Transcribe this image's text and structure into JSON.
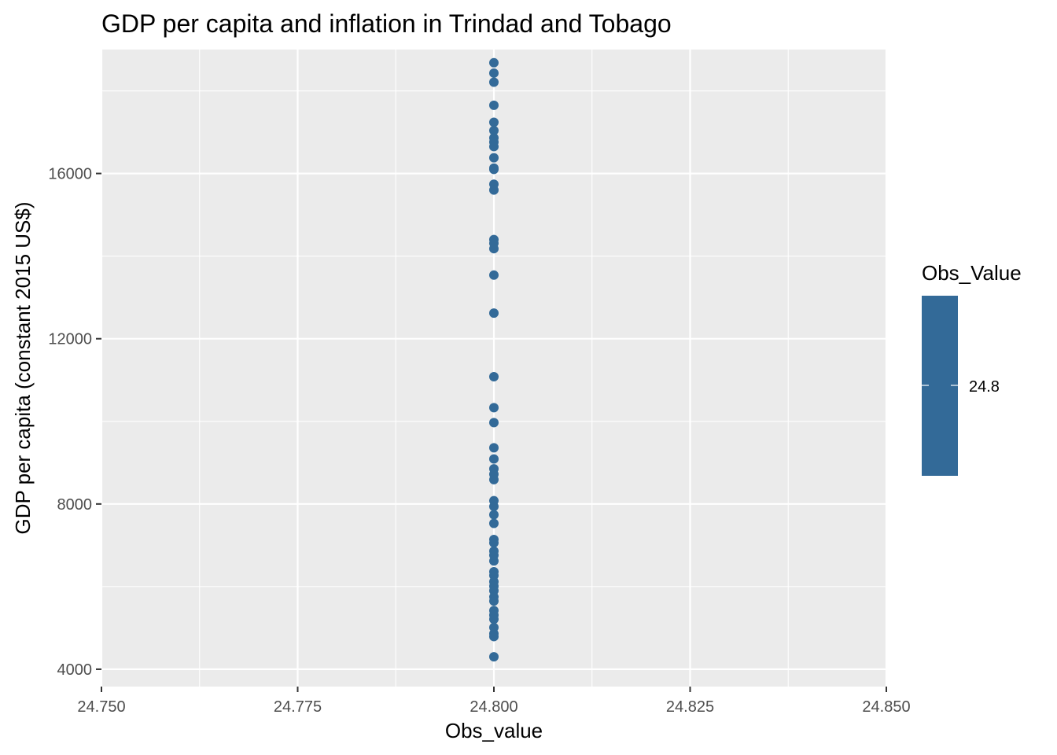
{
  "chart_data": {
    "type": "scatter",
    "title": "GDP per capita and inflation in Trindad and Tobago",
    "xlabel": "Obs_value",
    "ylabel": "GDP per capita (constant 2015 US$)",
    "xlim": [
      24.75,
      24.85
    ],
    "ylim": [
      3580,
      19000
    ],
    "x_ticks": [
      24.75,
      24.775,
      24.8,
      24.825,
      24.85
    ],
    "x_tick_labels": [
      "24.750",
      "24.775",
      "24.800",
      "24.825",
      "24.850"
    ],
    "y_ticks": [
      4000,
      8000,
      12000,
      16000
    ],
    "y_tick_labels": [
      "4000",
      "8000",
      "12000",
      "16000"
    ],
    "grid": true,
    "point_color": "#336A98",
    "panel_background": "#EBEBEB",
    "grid_color": "#FFFFFF",
    "legend": {
      "title": "Obs_Value",
      "position": "right",
      "type": "colorbar",
      "labels": [
        "24.8"
      ],
      "color": "#336A98"
    },
    "x": [
      24.8,
      24.8,
      24.8,
      24.8,
      24.8,
      24.8,
      24.8,
      24.8,
      24.8,
      24.8,
      24.8,
      24.8,
      24.8,
      24.8,
      24.8,
      24.8,
      24.8,
      24.8,
      24.8,
      24.8,
      24.8,
      24.8,
      24.8,
      24.8,
      24.8,
      24.8,
      24.8,
      24.8,
      24.8,
      24.8,
      24.8,
      24.8,
      24.8,
      24.8,
      24.8,
      24.8,
      24.8,
      24.8,
      24.8,
      24.8,
      24.8,
      24.8,
      24.8,
      24.8,
      24.8,
      24.8,
      24.8,
      24.8,
      24.8,
      24.8
    ],
    "y": [
      18680,
      18430,
      18210,
      17650,
      17240,
      17040,
      16860,
      16760,
      16650,
      16380,
      16130,
      16100,
      15740,
      15600,
      14400,
      14310,
      14180,
      13540,
      12620,
      11080,
      10330,
      9970,
      9360,
      9090,
      8850,
      8720,
      8590,
      8080,
      7940,
      7740,
      7530,
      7140,
      7060,
      6860,
      6760,
      6620,
      6360,
      6270,
      6120,
      6010,
      5900,
      5750,
      5650,
      5420,
      5310,
      5210,
      5010,
      4860,
      4790,
      4300
    ]
  }
}
